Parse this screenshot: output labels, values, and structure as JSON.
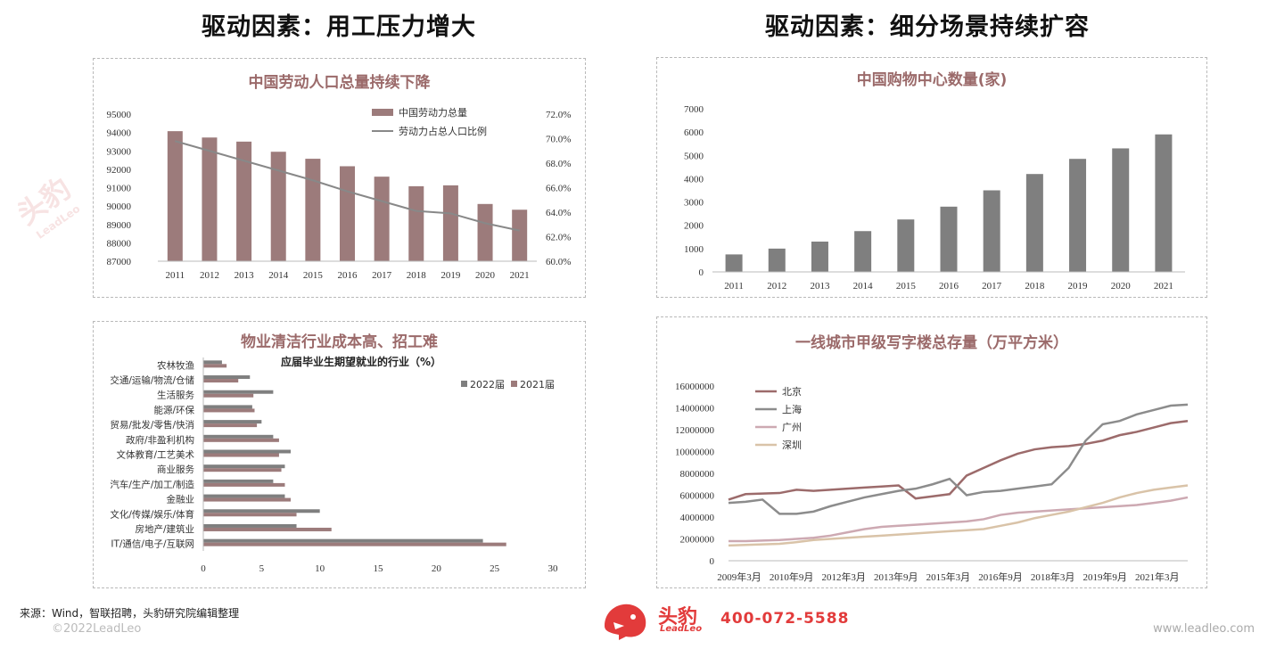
{
  "left_heading": "驱动因素：用工压力增大",
  "right_heading": "驱动因素：细分场景持续扩容",
  "footer": {
    "source": "来源：Wind，智联招聘，头豹研究院编辑整理",
    "copyright": "©2022LeadLeo",
    "url": "www.leadleo.com",
    "phone": "400-072-5588",
    "brand_name": "头豹",
    "brand_sub": "LeadLeo"
  },
  "watermark": {
    "text": "头豹",
    "sub": "LeadLeo"
  },
  "colors": {
    "mauve": "#9c7b7b",
    "gray": "#7f7f7f",
    "title": "#9b6a6a",
    "brand_red": "#e23b3b"
  },
  "chart_data": [
    {
      "id": "labor",
      "type": "bar",
      "title": "中国劳动人口总量持续下降",
      "categories": [
        "2011",
        "2012",
        "2013",
        "2014",
        "2015",
        "2016",
        "2017",
        "2018",
        "2019",
        "2020",
        "2021"
      ],
      "series": [
        {
          "name": "中国劳动力总量",
          "type": "bar",
          "axis": "left",
          "values": [
            94072,
            93727,
            93504,
            92953,
            92572,
            92165,
            91598,
            91078,
            91126,
            90112,
            89800
          ]
        },
        {
          "name": "劳动力占总人口比例",
          "type": "line",
          "axis": "right",
          "values": [
            69.8,
            69.0,
            68.2,
            67.4,
            66.6,
            65.7,
            64.9,
            64.1,
            63.9,
            63.1,
            62.5
          ]
        }
      ],
      "ylim": [
        87000,
        95000
      ],
      "yticks": [
        "95000",
        "94000",
        "93000",
        "92000",
        "91000",
        "90000",
        "89000",
        "88000",
        "87000"
      ],
      "y2lim": [
        60,
        72
      ],
      "y2ticks": [
        "72.0%",
        "70.0%",
        "68.0%",
        "66.0%",
        "64.0%",
        "62.0%",
        "60.0%"
      ],
      "legend_position": "top-right"
    },
    {
      "id": "malls",
      "type": "bar",
      "title": "中国购物中心数量(家)",
      "categories": [
        "2011",
        "2012",
        "2013",
        "2014",
        "2015",
        "2016",
        "2017",
        "2018",
        "2019",
        "2020",
        "2021"
      ],
      "values": [
        750,
        1000,
        1300,
        1750,
        2250,
        2800,
        3500,
        4200,
        4850,
        5300,
        5900
      ],
      "ylim": [
        0,
        7000
      ],
      "yticks": [
        "7000",
        "6000",
        "5000",
        "4000",
        "3000",
        "2000",
        "1000",
        "0"
      ]
    },
    {
      "id": "cleaning",
      "type": "bar",
      "orientation": "horizontal",
      "title": "物业清洁行业成本高、招工难",
      "subtitle": "应届毕业生期望就业的行业（%）",
      "categories": [
        "农林牧渔",
        "交通/运输/物流/仓储",
        "生活服务",
        "能源/环保",
        "贸易/批发/零售/快消",
        "政府/非盈利机构",
        "文体教育/工艺美术",
        "商业服务",
        "汽车/生产/加工/制造",
        "金融业",
        "文化/传媒/娱乐/体育",
        "房地产/建筑业",
        "IT/通信/电子/互联网"
      ],
      "series": [
        {
          "name": "2022届",
          "values": [
            1.6,
            4.0,
            6.0,
            4.2,
            5.0,
            6.0,
            7.5,
            7.0,
            6.0,
            7.0,
            10.0,
            8.0,
            24.0
          ]
        },
        {
          "name": "2021届",
          "values": [
            2.0,
            3.0,
            4.3,
            4.4,
            4.6,
            6.5,
            6.5,
            6.7,
            7.0,
            7.5,
            8.0,
            11.0,
            26.0
          ]
        }
      ],
      "xlim": [
        0,
        30
      ],
      "xticks": [
        "0",
        "5",
        "10",
        "15",
        "20",
        "25",
        "30"
      ],
      "legend_position": "top-right"
    },
    {
      "id": "offices",
      "type": "line",
      "title": "一线城市甲级写字楼总存量（万平方米）",
      "xticks": [
        "2009年3月",
        "2010年9月",
        "2012年3月",
        "2013年9月",
        "2015年3月",
        "2016年9月",
        "2018年3月",
        "2019年9月",
        "2021年3月"
      ],
      "series": [
        {
          "name": "北京",
          "values": [
            5600000,
            6100000,
            6150000,
            6200000,
            6500000,
            6400000,
            6500000,
            6600000,
            6700000,
            6800000,
            6900000,
            5700000,
            5900000,
            6100000,
            7800000,
            8500000,
            9200000,
            9800000,
            10200000,
            10400000,
            10500000,
            10700000,
            11000000,
            11500000,
            11800000,
            12200000,
            12600000,
            12800000
          ]
        },
        {
          "name": "上海",
          "values": [
            5300000,
            5400000,
            5600000,
            4300000,
            4300000,
            4500000,
            5000000,
            5400000,
            5800000,
            6100000,
            6400000,
            6600000,
            7000000,
            7500000,
            6000000,
            6300000,
            6400000,
            6600000,
            6800000,
            7000000,
            8500000,
            11000000,
            12500000,
            12800000,
            13400000,
            13800000,
            14200000,
            14300000
          ]
        },
        {
          "name": "广州",
          "values": [
            1800000,
            1800000,
            1850000,
            1900000,
            2000000,
            2100000,
            2300000,
            2600000,
            2900000,
            3100000,
            3200000,
            3300000,
            3400000,
            3500000,
            3600000,
            3800000,
            4200000,
            4400000,
            4500000,
            4600000,
            4700000,
            4800000,
            4900000,
            5000000,
            5100000,
            5300000,
            5500000,
            5800000
          ]
        },
        {
          "name": "深圳",
          "values": [
            1400000,
            1450000,
            1500000,
            1550000,
            1700000,
            1900000,
            2000000,
            2100000,
            2200000,
            2300000,
            2400000,
            2500000,
            2600000,
            2700000,
            2800000,
            2900000,
            3200000,
            3500000,
            3900000,
            4200000,
            4500000,
            4900000,
            5300000,
            5800000,
            6200000,
            6500000,
            6700000,
            6900000
          ]
        }
      ],
      "colors": [
        "#9c6b6b",
        "#8c8c8c",
        "#cda9b2",
        "#d9c3a8"
      ],
      "ylim": [
        0,
        16000000
      ],
      "yticks": [
        "16000000",
        "14000000",
        "12000000",
        "10000000",
        "8000000",
        "6000000",
        "4000000",
        "2000000",
        "0"
      ],
      "legend_position": "top-left"
    }
  ]
}
